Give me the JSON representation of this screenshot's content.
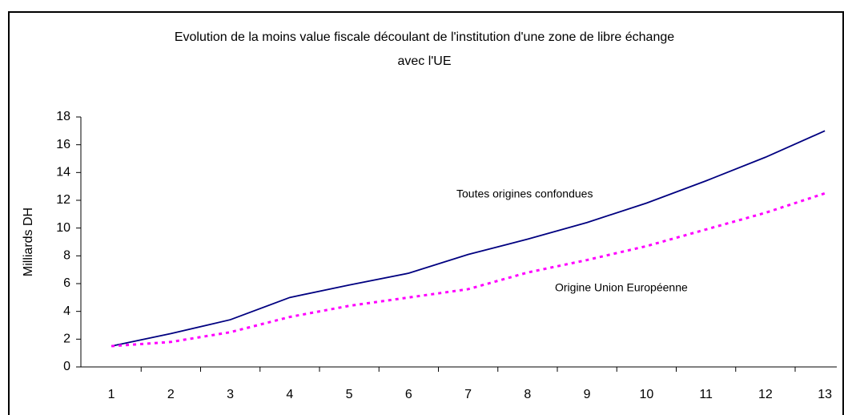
{
  "chart_data": {
    "type": "line",
    "title": [
      "Evolution de la moins value fiscale découlant de l'institution d'une zone de libre échange",
      "avec l'UE"
    ],
    "ylabel": "Milliards DH",
    "categories": [
      1,
      2,
      3,
      4,
      5,
      6,
      7,
      8,
      9,
      10,
      11,
      12,
      13
    ],
    "series": [
      {
        "name": "Toutes origines confondues",
        "color": "#000080",
        "dash": false,
        "values": [
          1.5,
          2.4,
          3.4,
          5.0,
          5.9,
          6.75,
          8.1,
          9.2,
          10.4,
          11.8,
          13.4,
          15.1,
          17.0
        ]
      },
      {
        "name": "Origine Union Européenne",
        "color": "#ff00ff",
        "dash": true,
        "values": [
          1.5,
          1.8,
          2.5,
          3.6,
          4.4,
          5.0,
          5.6,
          6.8,
          7.7,
          8.7,
          9.9,
          11.1,
          12.5
        ]
      }
    ],
    "ylim": [
      0,
      18
    ],
    "yticks": [
      0,
      2,
      4,
      6,
      8,
      10,
      12,
      14,
      16,
      18
    ],
    "grid": false
  }
}
